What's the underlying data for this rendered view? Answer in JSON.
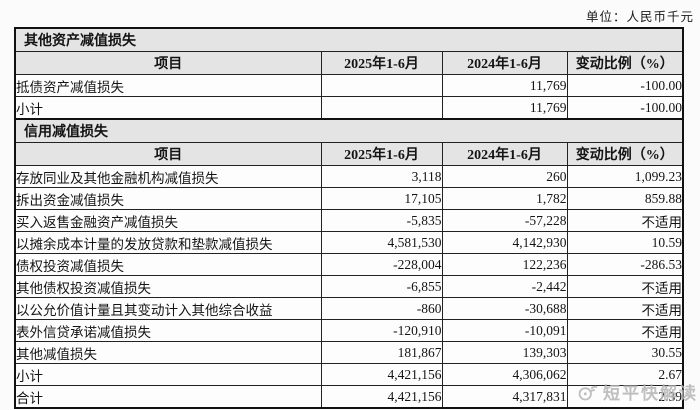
{
  "unit_label": "单位：人民币千元",
  "columns": [
    "项目",
    "2025年1-6月",
    "2024年1-6月",
    "变动比例（%）"
  ],
  "sections": [
    {
      "title": "其他资产减值损失",
      "rows": [
        {
          "item": "抵债资产减值损失",
          "v2025": "",
          "v2024": "11,769",
          "change": "-100.00"
        },
        {
          "item": "小计",
          "v2025": "",
          "v2024": "11,769",
          "change": "-100.00"
        }
      ]
    },
    {
      "title": "信用减值损失",
      "rows": [
        {
          "item": "存放同业及其他金融机构减值损失",
          "v2025": "3,118",
          "v2024": "260",
          "change": "1,099.23"
        },
        {
          "item": "拆出资金减值损失",
          "v2025": "17,105",
          "v2024": "1,782",
          "change": "859.88"
        },
        {
          "item": "买入返售金融资产减值损失",
          "v2025": "-5,835",
          "v2024": "-57,228",
          "change": "不适用"
        },
        {
          "item": "以摊余成本计量的发放贷款和垫款减值损失",
          "v2025": "4,581,530",
          "v2024": "4,142,930",
          "change": "10.59"
        },
        {
          "item": "债权投资减值损失",
          "v2025": "-228,004",
          "v2024": "122,236",
          "change": "-286.53"
        },
        {
          "item": "其他债权投资减值损失",
          "v2025": "-6,855",
          "v2024": "-2,442",
          "change": "不适用"
        },
        {
          "item": "以公允价值计量且其变动计入其他综合收益",
          "v2025": "-860",
          "v2024": "-30,688",
          "change": "不适用"
        },
        {
          "item": "表外信贷承诺减值损失",
          "v2025": "-120,910",
          "v2024": "-10,091",
          "change": "不适用"
        },
        {
          "item": "其他减值损失",
          "v2025": "181,867",
          "v2024": "139,303",
          "change": "30.55"
        },
        {
          "item": "小计",
          "v2025": "4,421,156",
          "v2024": "4,306,062",
          "change": "2.67"
        },
        {
          "item": "合计",
          "v2025": "4,421,156",
          "v2024": "4,317,831",
          "change": "2.39"
        }
      ]
    }
  ],
  "watermark": {
    "icon": "broadcast-bubble-icon",
    "text": "短平快解读"
  },
  "colors": {
    "band_bg": "#e4e4e4",
    "border": "#222222",
    "watermark": "#b5b5b5",
    "page_bg": "#fbfbfb"
  }
}
